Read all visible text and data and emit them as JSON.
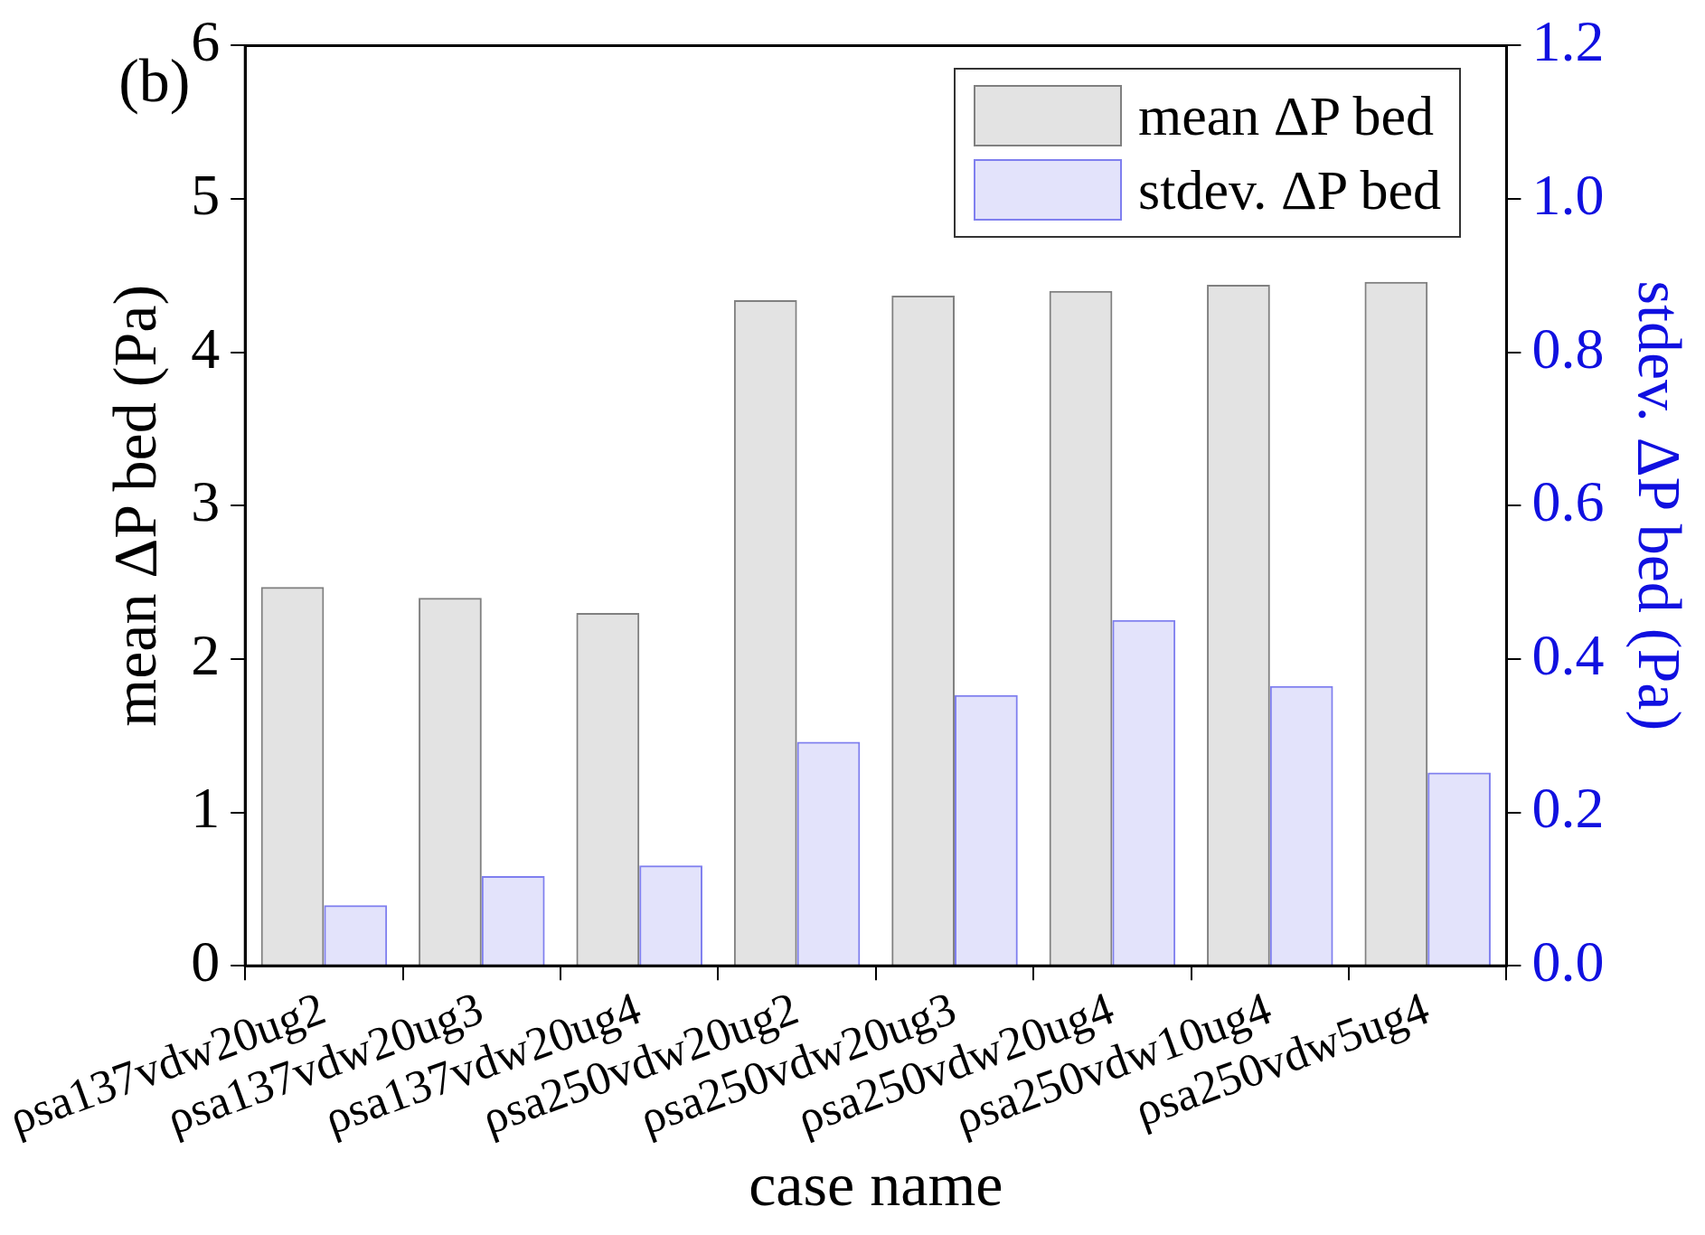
{
  "chart_data": {
    "type": "bar",
    "title": "(b)",
    "xlabel": "case name",
    "ylabel": "mean ΔP bed (Pa)",
    "y2label": "stdev. ΔP bed (Pa)",
    "categories": [
      "ρsa137vdw20ug2",
      "ρsa137vdw20ug3",
      "ρsa137vdw20ug4",
      "ρsa250vdw20ug2",
      "ρsa250vdw20ug3",
      "ρsa250vdw20ug4",
      "ρsa250vdw10ug4",
      "ρsa250vdw5ug4"
    ],
    "series": [
      {
        "name": "mean ΔP bed",
        "color": "#808080",
        "values": [
          2.47,
          2.4,
          2.3,
          4.34,
          4.37,
          4.4,
          4.44,
          4.46
        ]
      },
      {
        "name": "stdev. ΔP bed",
        "color": "#7f7fef",
        "axis": "y2",
        "values": [
          0.079,
          0.117,
          0.131,
          0.292,
          0.353,
          0.451,
          0.365,
          0.252
        ]
      }
    ],
    "ylim": [
      0,
      6
    ],
    "yticks": [
      0,
      1,
      2,
      3,
      4,
      5,
      6
    ],
    "y2lim": [
      0,
      1.2
    ],
    "y2ticks": [
      {
        "value": 0,
        "label": "0.0"
      },
      0.2,
      0.4,
      0.6,
      0.8,
      {
        "value": 1,
        "label": "1.0"
      },
      1.2
    ],
    "grid": false,
    "legend": "top right"
  }
}
